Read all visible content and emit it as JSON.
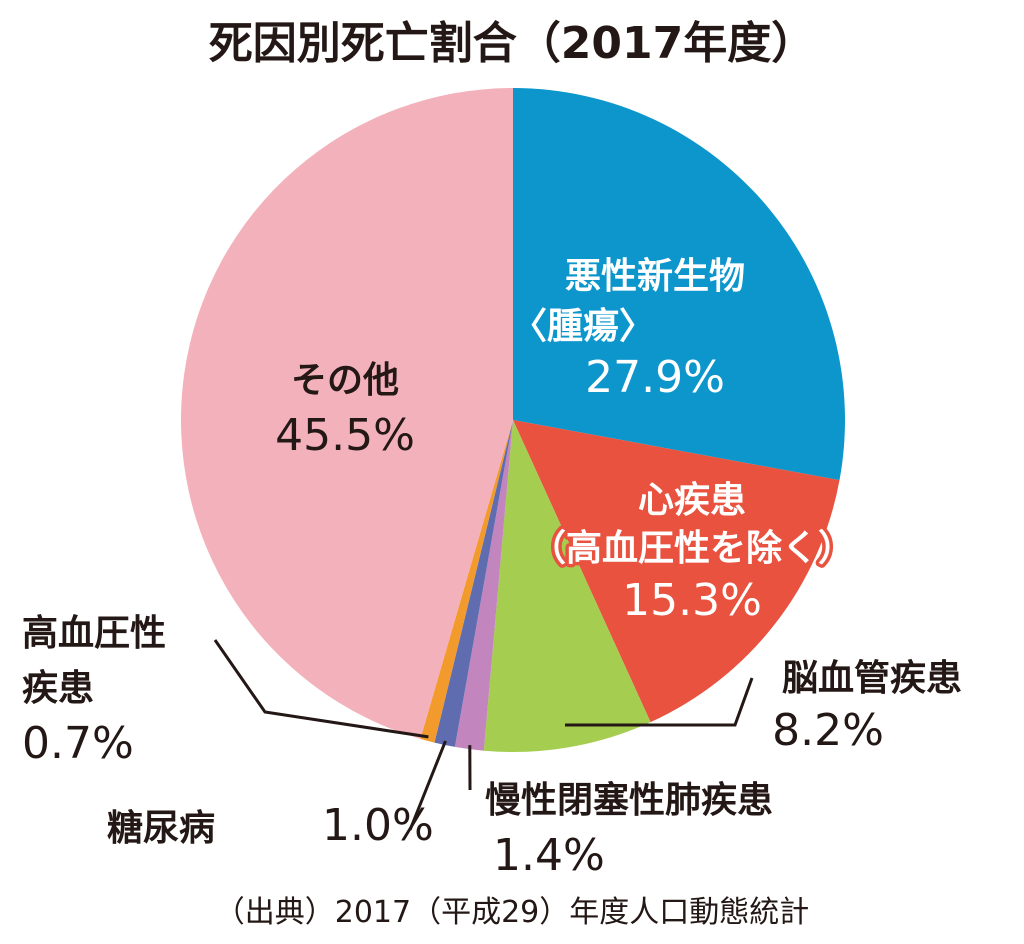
{
  "chart_data": {
    "type": "pie",
    "title": "死因別死亡割合（2017年度）",
    "source": "（出典）2017（平成29）年度人口動態統計",
    "slices": [
      {
        "label_lines": [
          "悪性新生物",
          "〈腫瘍〉"
        ],
        "label": "悪性新生物〈腫瘍〉",
        "value": 27.9,
        "value_label": "27.9%",
        "color": "#0c96cc"
      },
      {
        "label_lines": [
          "心疾患",
          "（高血圧性を除く）"
        ],
        "label": "心疾患（高血圧性を除く）",
        "value": 15.3,
        "value_label": "15.3%",
        "color": "#e8523f"
      },
      {
        "label_lines": [
          "脳血管疾患"
        ],
        "label": "脳血管疾患",
        "value": 8.2,
        "value_label": "8.2%",
        "color": "#a5cd50"
      },
      {
        "label_lines": [
          "慢性閉塞性肺疾患"
        ],
        "label": "慢性閉塞性肺疾患",
        "value": 1.4,
        "value_label": "1.4%",
        "color": "#c285bd"
      },
      {
        "label_lines": [
          "糖尿病"
        ],
        "label": "糖尿病",
        "value": 1.0,
        "value_label": "1.0%",
        "color": "#5f6cb0"
      },
      {
        "label_lines": [
          "高血圧性",
          "疾患"
        ],
        "label": "高血圧性疾患",
        "value": 0.7,
        "value_label": "0.7%",
        "color": "#f39a2c"
      },
      {
        "label_lines": [
          "その他"
        ],
        "label": "その他",
        "value": 45.5,
        "value_label": "45.5%",
        "color": "#f3b2bb"
      }
    ]
  }
}
